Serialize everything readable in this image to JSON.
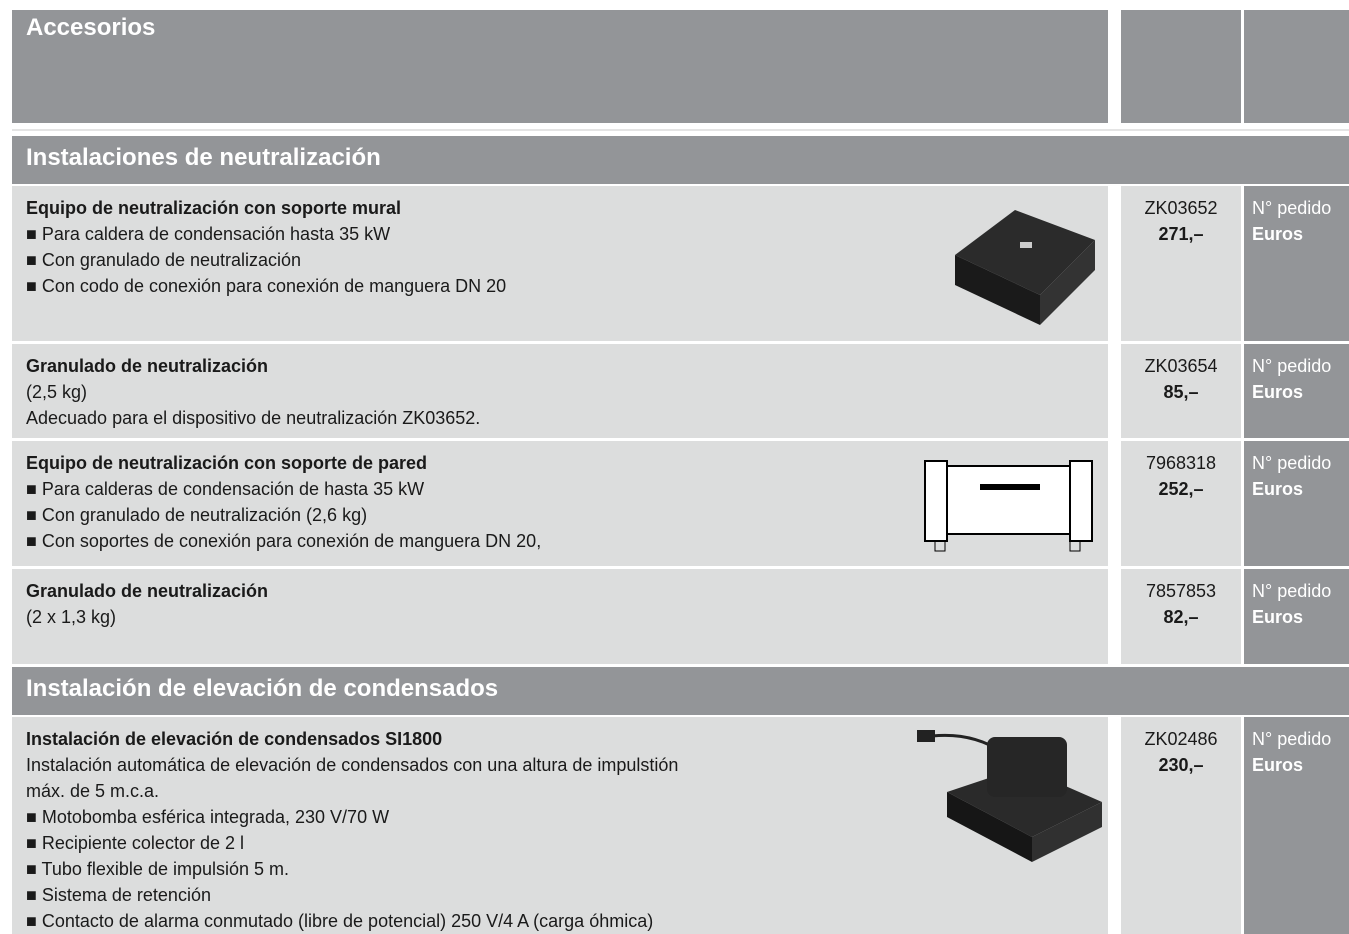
{
  "header": {
    "title": "Accesorios"
  },
  "sections": [
    {
      "title": "Instalaciones de neutralización",
      "items": [
        {
          "title": "Equipo de neutralización con soporte mural",
          "lines": [
            "■ Para caldera de condensación hasta 35 kW",
            "■ Con granulado de neutralización",
            "■ Con codo de conexión para conexión de manguera DN 20"
          ],
          "code": "ZK03652",
          "price": "271,–",
          "code_label": "N° pedido",
          "price_label": "Euros"
        },
        {
          "title": "Granulado de neutralización",
          "lines": [
            "(2,5 kg)",
            "Adecuado para el dispositivo de neutralización ZK03652."
          ],
          "code": "ZK03654",
          "price": "85,–",
          "code_label": "N° pedido",
          "price_label": "Euros"
        },
        {
          "title": "Equipo de neutralización con soporte de pared",
          "lines": [
            "■ Para calderas de condensación de hasta 35 kW",
            "■ Con granulado de neutralización (2,6 kg)",
            "■ Con soportes de conexión para conexión de manguera DN 20,"
          ],
          "code": "7968318",
          "price": "252,–",
          "code_label": "N° pedido",
          "price_label": "Euros"
        },
        {
          "title": "Granulado de neutralización",
          "lines": [
            "(2 x 1,3 kg)"
          ],
          "code": "7857853",
          "price": "82,–",
          "code_label": "N° pedido",
          "price_label": "Euros"
        }
      ]
    },
    {
      "title": "Instalación de elevación de condensados",
      "items": [
        {
          "title": "Instalación de elevación de condensados SI1800",
          "lines": [
            "Instalación automática de elevación de condensados con una altura de impulstión",
            "máx. de 5 m.c.a.",
            "■ Motobomba esférica integrada, 230 V/70 W",
            "■ Recipiente colector de 2 l",
            "■ Tubo flexible de impulsión 5 m.",
            "■ Sistema de retención",
            "■ Contacto de alarma conmutado (libre de potencial) 250 V/4 A (carga óhmica)"
          ],
          "code": "ZK02486",
          "price": "230,–",
          "code_label": "N° pedido",
          "price_label": "Euros"
        }
      ]
    }
  ]
}
